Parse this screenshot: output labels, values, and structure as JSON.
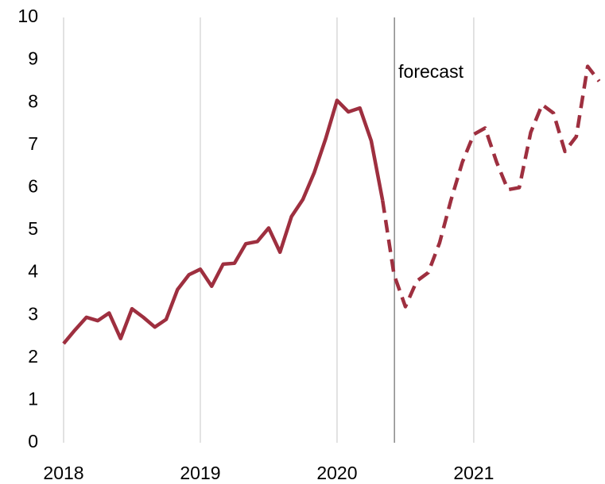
{
  "chart_data": {
    "type": "line",
    "annotation": {
      "text": "forecast",
      "x": 2020.42
    },
    "xlim": [
      2018,
      2021.96
    ],
    "ylim": [
      0,
      10
    ],
    "xticks": [
      2018,
      2019,
      2020,
      2021
    ],
    "yticks": [
      0,
      1,
      2,
      3,
      4,
      5,
      6,
      7,
      8,
      9,
      10
    ],
    "grid": true,
    "series": [
      {
        "color": "#9e2f3f",
        "dashed": false,
        "x": [
          2018,
          2018.083,
          2018.167,
          2018.25,
          2018.333,
          2018.417,
          2018.5,
          2018.583,
          2018.667,
          2018.75,
          2018.833,
          2018.917,
          2019,
          2019.083,
          2019.167,
          2019.25,
          2019.333,
          2019.417,
          2019.5,
          2019.583,
          2019.667,
          2019.75,
          2019.833,
          2019.917,
          2020,
          2020.083,
          2020.167,
          2020.25,
          2020.333
        ],
        "values": [
          2.33,
          2.65,
          2.95,
          2.87,
          3.05,
          2.45,
          3.15,
          2.95,
          2.72,
          2.9,
          3.6,
          3.95,
          4.08,
          3.68,
          4.2,
          4.22,
          4.68,
          4.73,
          5.05,
          4.48,
          5.32,
          5.72,
          6.35,
          7.15,
          8.05,
          7.78,
          7.87,
          7.1,
          5.7
        ]
      },
      {
        "color": "#9e2f3f",
        "dashed": true,
        "x": [
          2020.333,
          2020.417,
          2020.5,
          2020.583,
          2020.667,
          2020.75,
          2020.833,
          2020.917,
          2021,
          2021.083,
          2021.167,
          2021.25,
          2021.333,
          2021.417,
          2021.5,
          2021.583,
          2021.667,
          2021.75,
          2021.833,
          2021.917
        ],
        "values": [
          5.7,
          3.95,
          3.2,
          3.8,
          4.0,
          4.7,
          5.7,
          6.6,
          7.25,
          7.4,
          6.6,
          5.95,
          6.0,
          7.3,
          7.95,
          7.75,
          6.85,
          7.2,
          8.85,
          8.5
        ]
      }
    ]
  }
}
